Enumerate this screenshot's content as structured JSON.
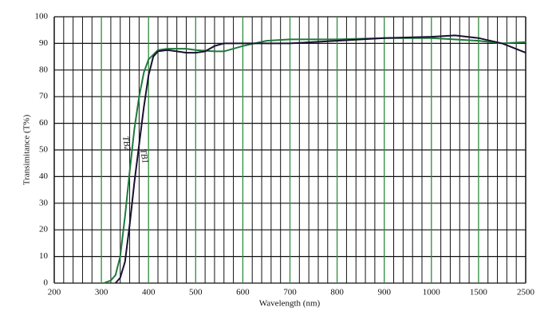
{
  "chart_data": {
    "type": "line",
    "xlabel": "Wavelength (nm)",
    "ylabel": "Transimitance (T%)",
    "xlim": [
      200,
      2500
    ],
    "ylim": [
      0,
      100
    ],
    "xticks": [
      200,
      300,
      400,
      500,
      600,
      700,
      800,
      900,
      1000,
      1500,
      2500
    ],
    "minor_xticks": [
      220,
      240,
      260,
      280,
      320,
      340,
      360,
      380,
      420,
      440,
      460,
      480,
      520,
      540,
      560,
      580,
      620,
      640,
      660,
      680,
      720,
      740,
      760,
      780,
      820,
      840,
      860,
      880,
      920,
      940,
      960,
      980,
      1100,
      1200,
      1300,
      1400,
      1700,
      1900,
      2100,
      2300
    ],
    "yticks": [
      0,
      10,
      20,
      30,
      40,
      50,
      60,
      70,
      80,
      90,
      100
    ],
    "grid": true,
    "major_grid_color": "#2e8b3e",
    "minor_grid_color": "#111111",
    "series": [
      {
        "name": "TB2",
        "color": "#1f7a3a",
        "x": [
          305,
          320,
          330,
          340,
          350,
          360,
          370,
          380,
          390,
          400,
          420,
          440,
          480,
          500,
          540,
          560,
          600,
          650,
          700,
          800,
          900,
          1000,
          1500,
          2000,
          2500
        ],
        "values": [
          0,
          1,
          3,
          10,
          25,
          42,
          58,
          70,
          79,
          84,
          87.5,
          88,
          88,
          87.5,
          87,
          87,
          89,
          91,
          91.5,
          91.5,
          92,
          92,
          91,
          90,
          90.5
        ]
      },
      {
        "name": "TB1",
        "color": "#1a1030",
        "x": [
          330,
          340,
          350,
          360,
          370,
          380,
          390,
          400,
          410,
          420,
          440,
          460,
          480,
          500,
          520,
          540,
          560,
          600,
          700,
          800,
          900,
          1000,
          1250,
          1500,
          2000,
          2500
        ],
        "values": [
          0,
          2,
          8,
          22,
          38,
          52,
          66,
          78,
          85,
          87,
          87.5,
          87,
          86.5,
          86.5,
          87,
          89,
          90,
          90,
          90,
          91,
          92,
          92.5,
          93,
          92,
          90,
          86.5
        ]
      }
    ]
  }
}
